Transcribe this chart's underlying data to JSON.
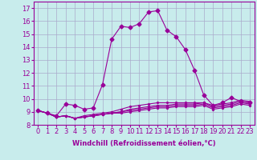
{
  "xlabel": "Windchill (Refroidissement éolien,°C)",
  "bg_color": "#c8ecec",
  "line_color": "#990099",
  "grid_color": "#aaaacc",
  "x_values": [
    0,
    1,
    2,
    3,
    4,
    5,
    6,
    7,
    8,
    9,
    10,
    11,
    12,
    13,
    14,
    15,
    16,
    17,
    18,
    19,
    20,
    21,
    22,
    23
  ],
  "series": [
    [
      9.1,
      8.9,
      8.7,
      9.6,
      9.5,
      9.2,
      9.3,
      11.1,
      14.6,
      15.6,
      15.5,
      15.8,
      16.7,
      16.8,
      15.3,
      14.8,
      13.8,
      12.2,
      10.3,
      9.5,
      9.7,
      10.1,
      9.8,
      9.7
    ],
    [
      9.1,
      8.9,
      8.6,
      8.7,
      8.5,
      8.7,
      8.8,
      8.9,
      9.0,
      9.2,
      9.4,
      9.5,
      9.6,
      9.7,
      9.7,
      9.7,
      9.7,
      9.7,
      9.7,
      9.5,
      9.6,
      9.7,
      9.9,
      9.8
    ],
    [
      9.1,
      8.9,
      8.6,
      8.7,
      8.5,
      8.6,
      8.7,
      8.8,
      8.9,
      9.0,
      9.2,
      9.3,
      9.4,
      9.5,
      9.5,
      9.6,
      9.6,
      9.6,
      9.7,
      9.4,
      9.5,
      9.6,
      9.8,
      9.7
    ],
    [
      9.1,
      8.9,
      8.6,
      8.7,
      8.5,
      8.6,
      8.7,
      8.8,
      8.9,
      9.0,
      9.1,
      9.2,
      9.3,
      9.4,
      9.4,
      9.5,
      9.5,
      9.5,
      9.6,
      9.3,
      9.4,
      9.5,
      9.7,
      9.6
    ],
    [
      9.1,
      8.9,
      8.6,
      8.7,
      8.5,
      8.6,
      8.7,
      8.8,
      8.9,
      8.9,
      9.0,
      9.1,
      9.2,
      9.3,
      9.3,
      9.4,
      9.4,
      9.4,
      9.5,
      9.2,
      9.3,
      9.4,
      9.6,
      9.5
    ]
  ],
  "xlim": [
    -0.5,
    23.5
  ],
  "ylim": [
    8.0,
    17.5
  ],
  "yticks": [
    8,
    9,
    10,
    11,
    12,
    13,
    14,
    15,
    16,
    17
  ],
  "xticks": [
    0,
    1,
    2,
    3,
    4,
    5,
    6,
    7,
    8,
    9,
    10,
    11,
    12,
    13,
    14,
    15,
    16,
    17,
    18,
    19,
    20,
    21,
    22,
    23
  ],
  "marker": "D",
  "marker_size": 2.5,
  "linewidth": 0.8,
  "fontsize_label": 6,
  "fontsize_tick": 6
}
